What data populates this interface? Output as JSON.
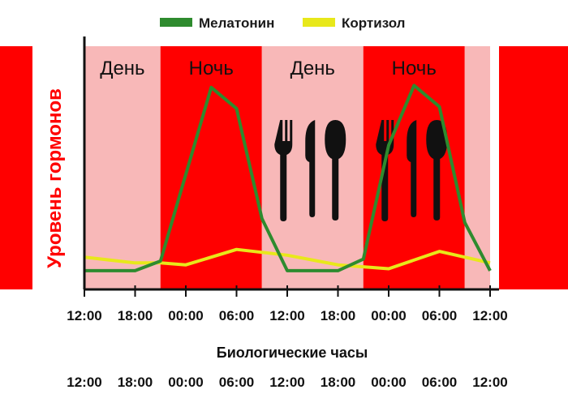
{
  "chart_data": {
    "type": "line",
    "ylabel": "Уровень гормонов",
    "xlabel": "Биологические часы",
    "legend": {
      "placement": "top"
    },
    "x_ticks": [
      "12:00",
      "18:00",
      "00:00",
      "06:00",
      "12:00",
      "18:00",
      "00:00",
      "06:00",
      "12:00"
    ],
    "bottom_ticks": [
      "12:00",
      "18:00",
      "00:00",
      "06:00",
      "12:00",
      "18:00",
      "00:00",
      "06:00",
      "12:00"
    ],
    "x_range": [
      0,
      48
    ],
    "y_range": [
      0,
      100
    ],
    "bands": [
      {
        "label": "День",
        "from": 0,
        "to": 9,
        "kind": "day"
      },
      {
        "label": "Ночь",
        "from": 9,
        "to": 21,
        "kind": "night"
      },
      {
        "label": "День",
        "from": 21,
        "to": 33,
        "kind": "day"
      },
      {
        "label": "Ночь",
        "from": 33,
        "to": 45,
        "kind": "night"
      },
      {
        "label": "",
        "from": 45,
        "to": 48,
        "kind": "day"
      }
    ],
    "meal_icons": [
      27,
      39
    ],
    "series": [
      {
        "name": "Мелатонин",
        "color": "#2e8b2e",
        "x": [
          0,
          6,
          9,
          15,
          18,
          21,
          24,
          30,
          33,
          36,
          39,
          42,
          45,
          48
        ],
        "y": [
          3,
          3,
          8,
          98,
          87,
          30,
          3,
          3,
          9,
          68,
          99,
          88,
          28,
          3
        ]
      },
      {
        "name": "Кортизол",
        "color": "#e8e81a",
        "x": [
          0,
          6,
          9,
          12,
          18,
          24,
          30,
          33,
          36,
          42,
          48
        ],
        "y": [
          10,
          7,
          7,
          6,
          14,
          11,
          6,
          5,
          4,
          13,
          7
        ]
      }
    ],
    "colors": {
      "day": "#f8b8b8",
      "night": "#ff0000",
      "frame": "#ff0000"
    }
  }
}
